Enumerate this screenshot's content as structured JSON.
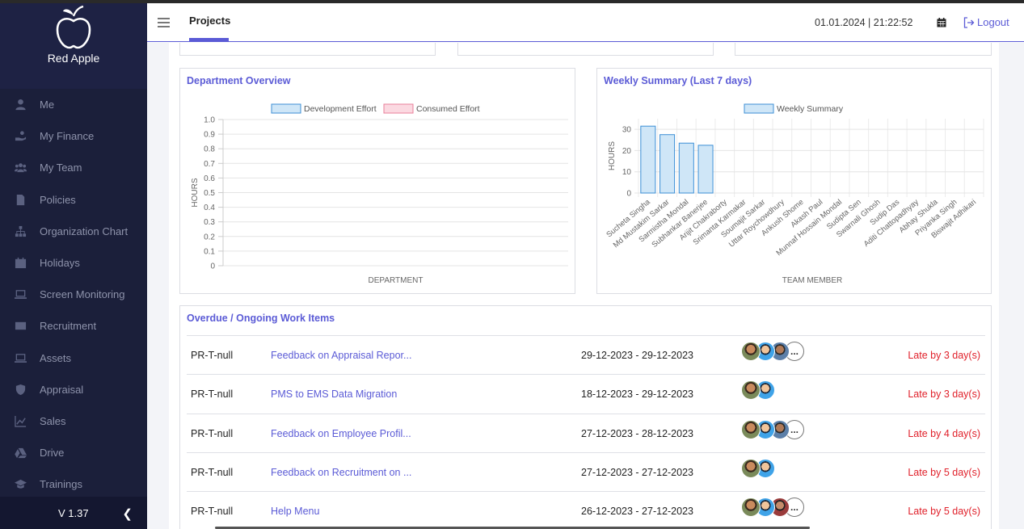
{
  "sidebar": {
    "brand": "Red Apple",
    "items": [
      {
        "label": "Me",
        "icon": "user-icon"
      },
      {
        "label": "My Finance",
        "icon": "hand-coin-icon"
      },
      {
        "label": "My Team",
        "icon": "team-icon"
      },
      {
        "label": "Policies",
        "icon": "document-icon"
      },
      {
        "label": "Organization Chart",
        "icon": "sitemap-icon"
      },
      {
        "label": "Holidays",
        "icon": "calendar-icon"
      },
      {
        "label": "Screen Monitoring",
        "icon": "laptop-icon"
      },
      {
        "label": "Recruitment",
        "icon": "envelope-icon"
      },
      {
        "label": "Assets",
        "icon": "laptop-icon"
      },
      {
        "label": "Appraisal",
        "icon": "shield-icon"
      },
      {
        "label": "Sales",
        "icon": "line-chart-icon"
      },
      {
        "label": "Drive",
        "icon": "drive-icon"
      },
      {
        "label": "Trainings",
        "icon": "graduation-cap-icon"
      }
    ],
    "version": "V 1.37"
  },
  "header": {
    "tab": "Projects",
    "datetime": "01.01.2024  | 21:22:52",
    "logout": "Logout"
  },
  "department_overview": {
    "title": "Department Overview"
  },
  "weekly_summary": {
    "title": "Weekly Summary (Last 7 days)"
  },
  "chart_data": [
    {
      "type": "bar",
      "title": "Department Overview",
      "xlabel": "DEPARTMENT",
      "ylabel": "HOURS",
      "categories": [],
      "series": [
        {
          "name": "Development Effort",
          "values": []
        },
        {
          "name": "Consumed Effort",
          "values": []
        }
      ],
      "ylim": [
        0,
        1.0
      ],
      "yticks": [
        "0",
        "0.1",
        "0.2",
        "0.3",
        "0.4",
        "0.5",
        "0.6",
        "0.7",
        "0.8",
        "0.9",
        "1.0"
      ],
      "legend": "top",
      "grid": true,
      "colors": {
        "Development Effort": "#cfe6f7",
        "Consumed Effort": "#fbd9e1"
      }
    },
    {
      "type": "bar",
      "title": "Weekly Summary (Last 7 days)",
      "xlabel": "TEAM MEMBER",
      "ylabel": "HOURS",
      "categories": [
        "Sucheta Singha",
        "Md Mustakim Sarkar",
        "Sarmistha Mondal",
        "Subhankar Banerjee",
        "Arijit Chakraborty",
        "Srimanta Karmakar",
        "Soumajit Sarkar",
        "Uttar Roychowdhury",
        "Ankush Shome",
        "Akash Paul",
        "Munnaf Hossain Mondal",
        "Sudipta Sen",
        "Swarnali Ghosh",
        "Sudip Das",
        "Aditi Chattopadhyay",
        "Abhay Shukla",
        "Priyanka Singh",
        "Biswajit Adhikari"
      ],
      "series": [
        {
          "name": "Weekly Summary",
          "values": [
            31.5,
            27.5,
            23.5,
            22.5,
            0,
            0,
            0,
            0,
            0,
            0,
            0,
            0,
            0,
            0,
            0,
            0,
            0,
            0
          ]
        }
      ],
      "ylim": [
        0,
        35
      ],
      "yticks": [
        "0",
        "10",
        "20",
        "30"
      ],
      "legend": "top",
      "grid": true,
      "colors": {
        "Weekly Summary": "#cfe6f7"
      }
    }
  ],
  "work_items": {
    "title": "Overdue / Ongoing Work Items",
    "rows": [
      {
        "code": "PR-T-null",
        "name": "Feedback on Appraisal Repor...",
        "range": "29-12-2023 - 29-12-2023",
        "avatars": 3,
        "more": true,
        "late": "Late by 3 day(s)"
      },
      {
        "code": "PR-T-null",
        "name": "PMS to EMS Data Migration",
        "range": "18-12-2023 - 29-12-2023",
        "avatars": 2,
        "more": false,
        "late": "Late by 3 day(s)"
      },
      {
        "code": "PR-T-null",
        "name": "Feedback on Employee Profil...",
        "range": "27-12-2023 - 28-12-2023",
        "avatars": 3,
        "more": true,
        "late": "Late by 4 day(s)"
      },
      {
        "code": "PR-T-null",
        "name": "Feedback on Recruitment on ...",
        "range": "27-12-2023 - 27-12-2023",
        "avatars": 2,
        "more": false,
        "late": "Late by 5 day(s)"
      },
      {
        "code": "PR-T-null",
        "name": "Help Menu",
        "range": "26-12-2023 - 27-12-2023",
        "avatars": 3,
        "more": true,
        "late": "Late by 5 day(s)"
      }
    ],
    "more_label": "..."
  }
}
